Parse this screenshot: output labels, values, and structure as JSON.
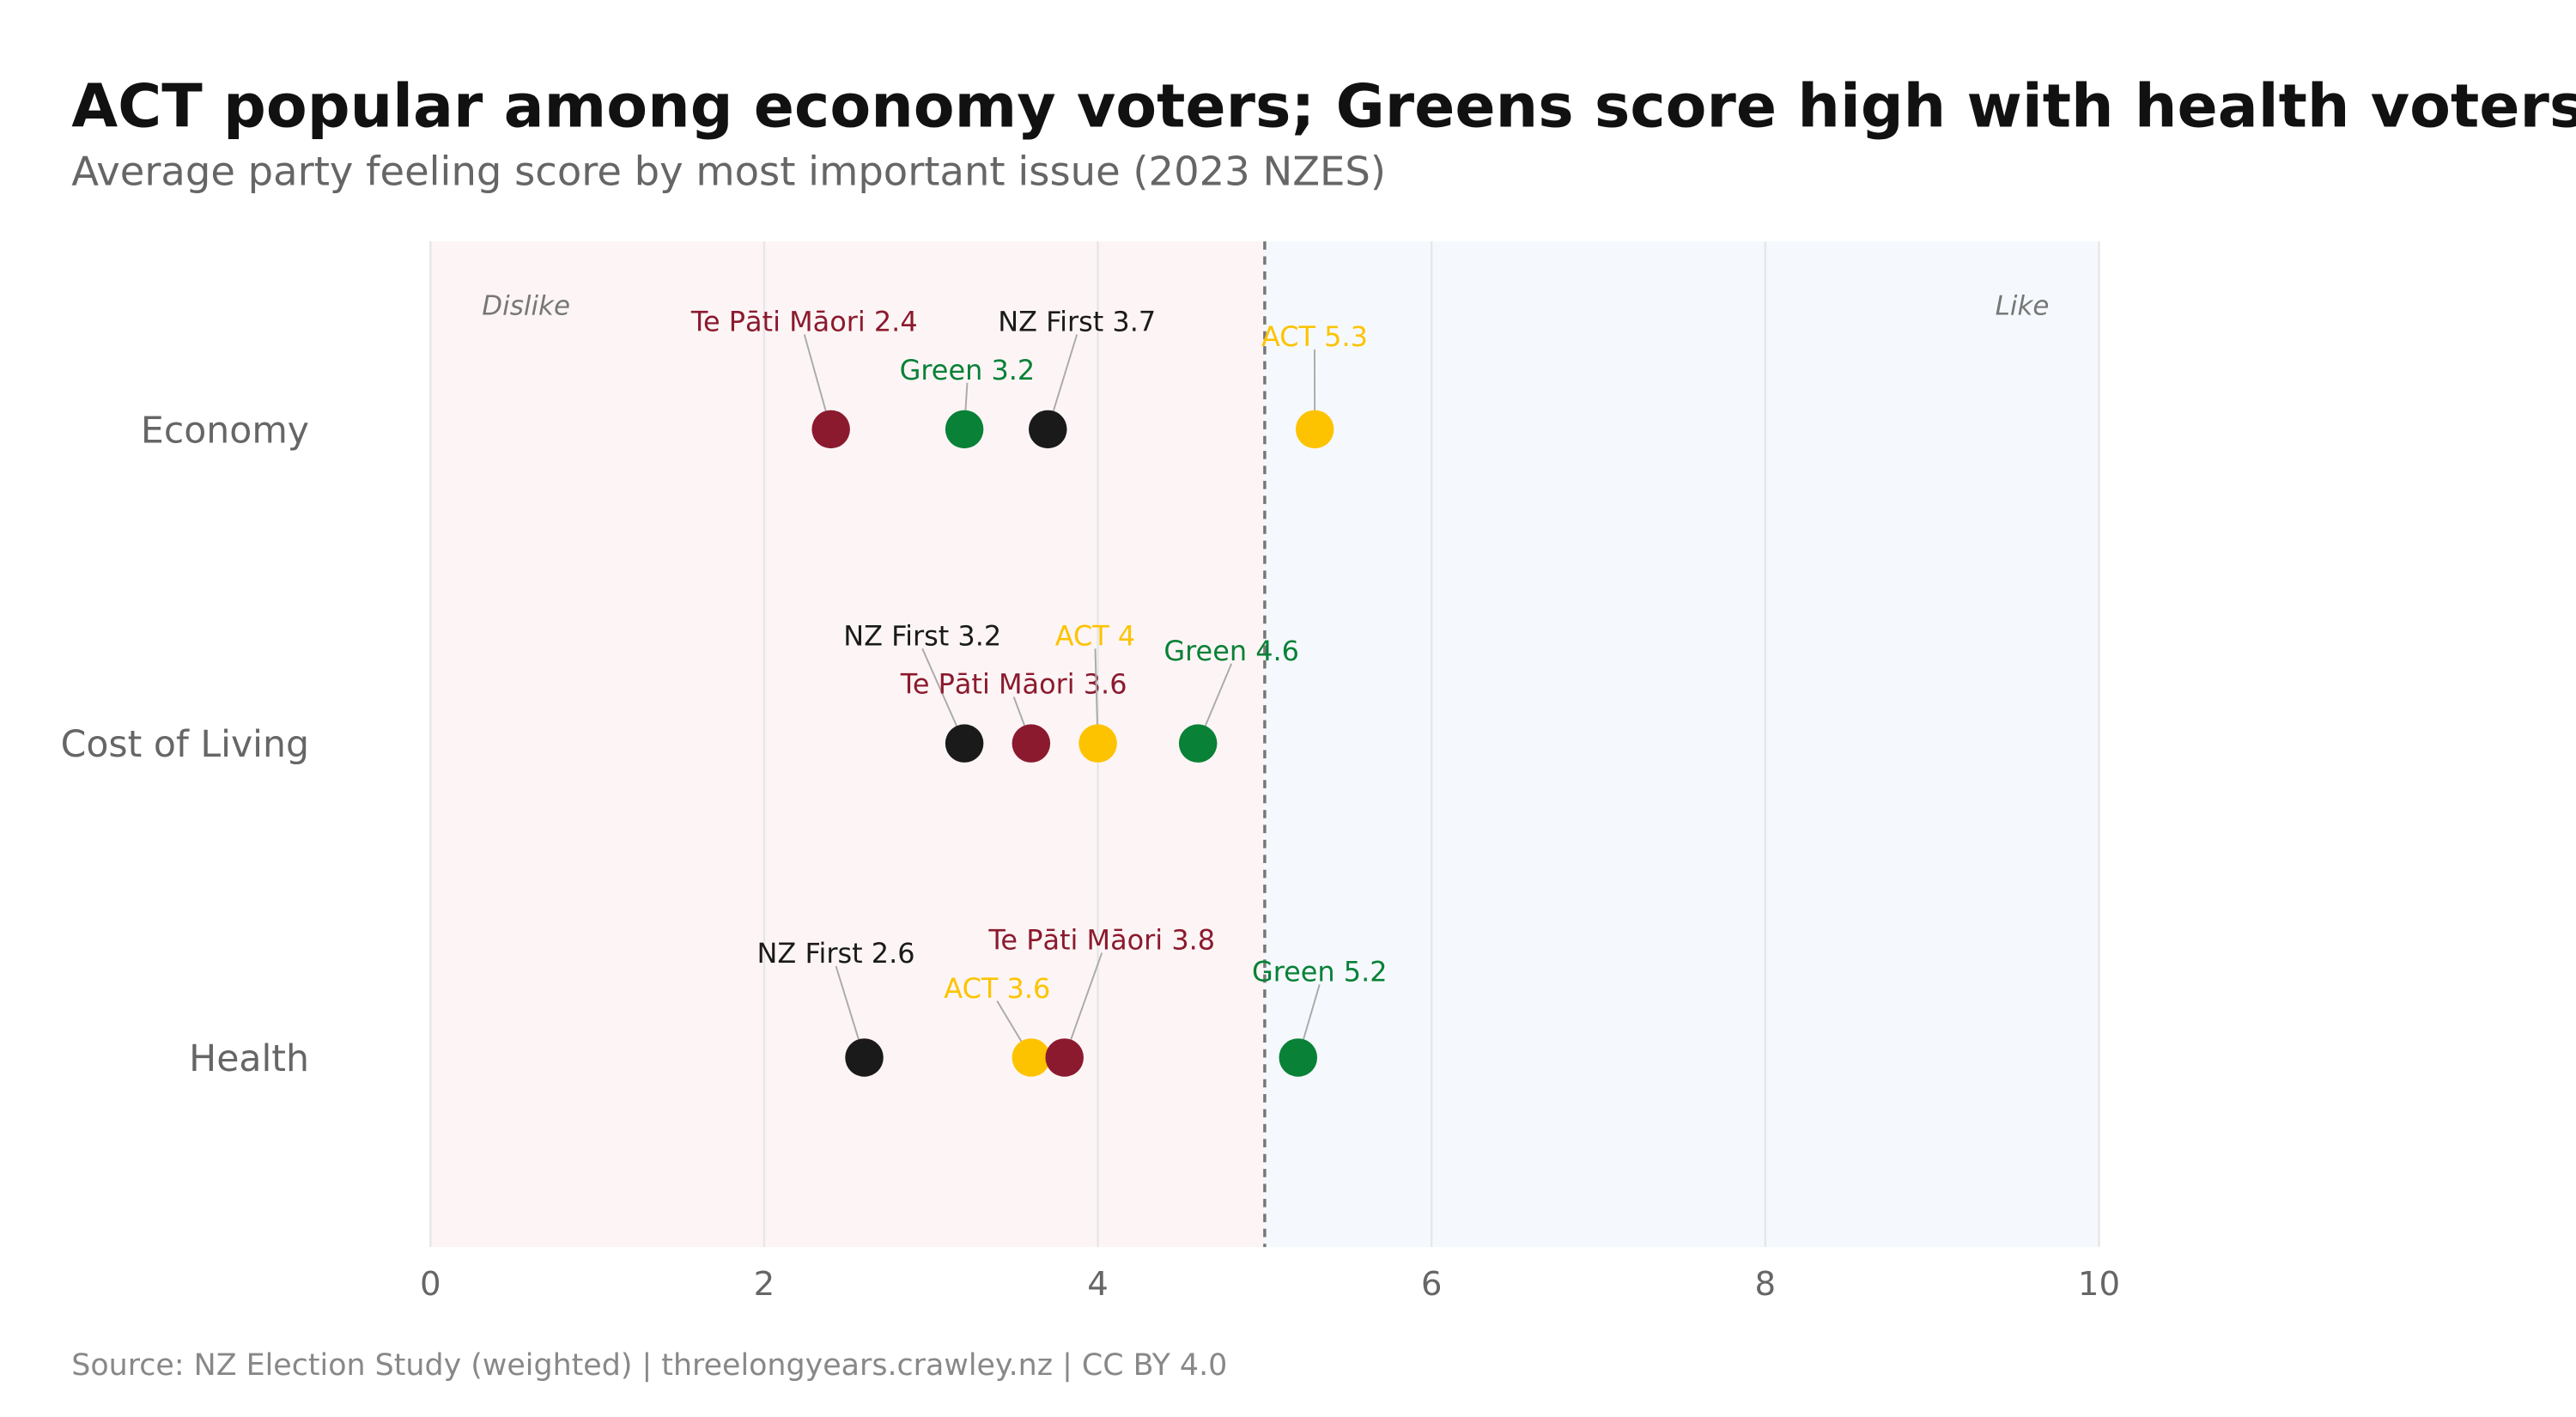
{
  "chart_data": {
    "type": "scatter",
    "title": "ACT popular among economy voters; Greens score high with health voters",
    "subtitle": "Average party feeling score by most important issue (2023 NZES)",
    "source": "Source: NZ Election Study (weighted) | threelongyears.crawley.nz | CC BY 4.0",
    "xlim": [
      0,
      10
    ],
    "x_ticks": [
      "0",
      "2",
      "4",
      "6",
      "8",
      "10"
    ],
    "reference_line": 5,
    "region_labels": {
      "left": "Dislike",
      "right": "Like"
    },
    "grid": true,
    "categories": [
      "Economy",
      "Cost of Living",
      "Health"
    ],
    "colors": {
      "Te Pāti Māori": "#8b1a2e",
      "Green": "#098137",
      "NZ First": "#1a1a1a",
      "ACT": "#fdc300",
      "dislike_bg": "#fdf5f5",
      "like_bg": "#f5f9fd"
    },
    "points": [
      {
        "category": "Economy",
        "party": "Te Pāti Māori",
        "value": 2.4,
        "label": "Te Pāti Māori 2.4"
      },
      {
        "category": "Economy",
        "party": "Green",
        "value": 3.2,
        "label": "Green 3.2"
      },
      {
        "category": "Economy",
        "party": "NZ First",
        "value": 3.7,
        "label": "NZ First 3.7"
      },
      {
        "category": "Economy",
        "party": "ACT",
        "value": 5.3,
        "label": "ACT 5.3"
      },
      {
        "category": "Cost of Living",
        "party": "NZ First",
        "value": 3.2,
        "label": "NZ First 3.2"
      },
      {
        "category": "Cost of Living",
        "party": "Te Pāti Māori",
        "value": 3.6,
        "label": "Te Pāti Māori 3.6"
      },
      {
        "category": "Cost of Living",
        "party": "ACT",
        "value": 4,
        "label": "ACT 4"
      },
      {
        "category": "Cost of Living",
        "party": "Green",
        "value": 4.6,
        "label": "Green 4.6"
      },
      {
        "category": "Health",
        "party": "NZ First",
        "value": 2.6,
        "label": "NZ First 2.6"
      },
      {
        "category": "Health",
        "party": "ACT",
        "value": 3.6,
        "label": "ACT 3.6"
      },
      {
        "category": "Health",
        "party": "Te Pāti Māori",
        "value": 3.8,
        "label": "Te Pāti Māori 3.8"
      },
      {
        "category": "Health",
        "party": "Green",
        "value": 5.2,
        "label": "Green 5.2"
      }
    ]
  }
}
